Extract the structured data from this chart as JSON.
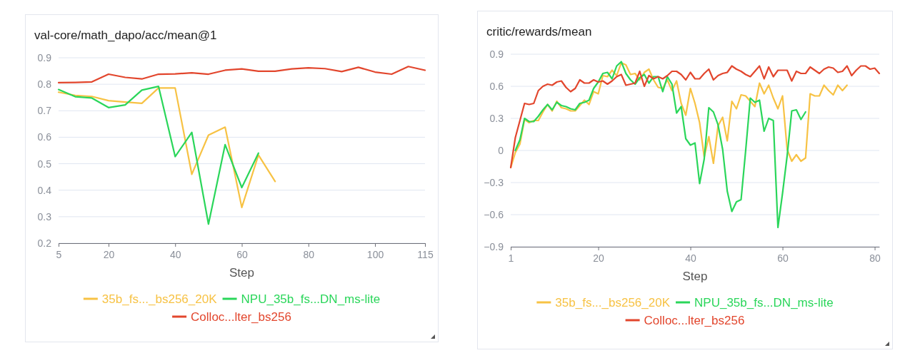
{
  "chart_data": [
    {
      "type": "line",
      "title": "val-core/math_dapo/acc/mean@1",
      "xlabel": "Step",
      "xlim": [
        5,
        115
      ],
      "xticks": [
        5,
        20,
        40,
        60,
        80,
        100,
        115
      ],
      "ylim": [
        0.2,
        0.9
      ],
      "yticks": [
        0.2,
        0.3,
        0.4,
        0.5,
        0.6,
        0.7,
        0.8,
        0.9
      ],
      "grid": "y",
      "legend": "bottom",
      "marker": "none",
      "line_style": "solid",
      "series": [
        {
          "name": "35b_fs..._bs256_20K",
          "color": "#f7c244",
          "x": [
            5,
            10,
            15,
            20,
            25,
            30,
            35,
            40,
            45,
            50,
            55,
            60,
            65,
            70
          ],
          "values": [
            0.77,
            0.758,
            0.754,
            0.738,
            0.733,
            0.728,
            0.786,
            0.786,
            0.46,
            0.608,
            0.638,
            0.335,
            0.533,
            0.433
          ]
        },
        {
          "name": "NPU_35b_fs...DN_ms-lite",
          "color": "#2ad65a",
          "x": [
            5,
            10,
            15,
            20,
            25,
            30,
            35,
            40,
            45,
            50,
            55,
            60,
            65
          ],
          "values": [
            0.78,
            0.753,
            0.748,
            0.712,
            0.722,
            0.778,
            0.792,
            0.527,
            0.618,
            0.272,
            0.572,
            0.41,
            0.54
          ]
        },
        {
          "name": "Colloc...lter_bs256",
          "color": "#e2462d",
          "x": [
            5,
            10,
            15,
            20,
            25,
            30,
            35,
            40,
            45,
            50,
            55,
            60,
            65,
            70,
            75,
            80,
            85,
            90,
            95,
            100,
            105,
            110,
            115
          ],
          "values": [
            0.806,
            0.807,
            0.809,
            0.838,
            0.826,
            0.82,
            0.838,
            0.839,
            0.843,
            0.838,
            0.853,
            0.858,
            0.849,
            0.849,
            0.858,
            0.862,
            0.859,
            0.848,
            0.864,
            0.846,
            0.838,
            0.867,
            0.853
          ]
        }
      ]
    },
    {
      "type": "line",
      "title": "critic/rewards/mean",
      "xlabel": "Step",
      "xlim": [
        1,
        81
      ],
      "xticks": [
        1,
        20,
        40,
        60,
        80
      ],
      "ylim": [
        -0.9,
        0.9
      ],
      "yticks": [
        -0.9,
        -0.6,
        -0.3,
        0,
        0.3,
        0.6,
        0.9
      ],
      "grid": "y",
      "legend": "bottom",
      "marker": "none",
      "line_style": "solid",
      "series": [
        {
          "name": "35b_fs..._bs256_20K",
          "color": "#f7c244",
          "x": [
            1,
            2,
            3,
            4,
            5,
            6,
            7,
            8,
            9,
            10,
            11,
            12,
            13,
            14,
            15,
            16,
            17,
            18,
            19,
            20,
            21,
            22,
            23,
            24,
            25,
            26,
            27,
            28,
            29,
            30,
            31,
            32,
            33,
            34,
            35,
            36,
            37,
            38,
            39,
            40,
            41,
            42,
            43,
            44,
            45,
            46,
            47,
            48,
            49,
            50,
            51,
            52,
            53,
            54,
            55,
            56,
            57,
            58,
            59,
            60,
            61,
            62,
            63,
            64,
            65,
            66,
            67,
            68,
            69,
            70,
            71,
            72,
            73,
            74
          ],
          "values": [
            -0.16,
            -0.02,
            0.06,
            0.29,
            0.26,
            0.28,
            0.28,
            0.36,
            0.43,
            0.37,
            0.46,
            0.4,
            0.39,
            0.37,
            0.37,
            0.42,
            0.47,
            0.43,
            0.55,
            0.53,
            0.7,
            0.69,
            0.75,
            0.7,
            0.82,
            0.8,
            0.71,
            0.72,
            0.66,
            0.73,
            0.76,
            0.66,
            0.59,
            0.58,
            0.66,
            0.56,
            0.65,
            0.44,
            0.33,
            0.58,
            0.44,
            0.26,
            -0.06,
            0.13,
            -0.12,
            0.23,
            0.31,
            0.09,
            0.46,
            0.39,
            0.52,
            0.51,
            0.46,
            0.41,
            0.63,
            0.53,
            0.61,
            0.49,
            0.39,
            0.51,
            0.01,
            -0.1,
            -0.04,
            -0.1,
            -0.07,
            0.53,
            0.51,
            0.51,
            0.61,
            0.56,
            0.52,
            0.61,
            0.56,
            0.61
          ]
        },
        {
          "name": "NPU_35b_fs...DN_ms-lite",
          "color": "#2ad65a",
          "x": [
            2,
            3,
            4,
            5,
            6,
            7,
            8,
            9,
            10,
            11,
            12,
            13,
            14,
            15,
            16,
            17,
            18,
            19,
            20,
            21,
            22,
            23,
            24,
            25,
            26,
            27,
            28,
            29,
            30,
            31,
            32,
            33,
            34,
            35,
            36,
            37,
            38,
            39,
            40,
            41,
            42,
            43,
            44,
            45,
            46,
            47,
            48,
            49,
            50,
            51,
            52,
            53,
            54,
            55,
            56,
            57,
            58,
            59,
            60,
            61,
            62,
            63,
            64,
            65
          ],
          "values": [
            0.0,
            0.1,
            0.3,
            0.27,
            0.27,
            0.32,
            0.38,
            0.43,
            0.38,
            0.45,
            0.42,
            0.41,
            0.39,
            0.38,
            0.44,
            0.45,
            0.47,
            0.58,
            0.64,
            0.72,
            0.73,
            0.67,
            0.79,
            0.83,
            0.72,
            0.66,
            0.62,
            0.68,
            0.71,
            0.63,
            0.69,
            0.69,
            0.55,
            0.69,
            0.62,
            0.35,
            0.41,
            0.11,
            0.05,
            0.07,
            -0.31,
            -0.08,
            0.4,
            0.36,
            0.24,
            0.01,
            -0.38,
            -0.57,
            -0.48,
            -0.46,
            0.0,
            0.49,
            0.45,
            0.47,
            0.18,
            0.3,
            0.28,
            -0.72,
            -0.4,
            -0.05,
            0.37,
            0.38,
            0.29,
            0.36
          ]
        },
        {
          "name": "Colloc...lter_bs256",
          "color": "#e2462d",
          "x": [
            1,
            2,
            3,
            4,
            5,
            6,
            7,
            8,
            9,
            10,
            11,
            12,
            13,
            14,
            15,
            16,
            17,
            18,
            19,
            20,
            21,
            22,
            23,
            24,
            25,
            26,
            27,
            28,
            29,
            30,
            31,
            32,
            33,
            34,
            35,
            36,
            37,
            38,
            39,
            40,
            41,
            42,
            43,
            44,
            45,
            46,
            47,
            48,
            49,
            50,
            51,
            52,
            53,
            54,
            55,
            56,
            57,
            58,
            59,
            60,
            61,
            62,
            63,
            64,
            65,
            66,
            67,
            68,
            69,
            70,
            71,
            72,
            73,
            74,
            75,
            76,
            77,
            78,
            79,
            80,
            81
          ],
          "values": [
            -0.16,
            0.12,
            0.28,
            0.44,
            0.43,
            0.44,
            0.56,
            0.6,
            0.62,
            0.61,
            0.64,
            0.65,
            0.59,
            0.55,
            0.58,
            0.66,
            0.63,
            0.63,
            0.66,
            0.64,
            0.65,
            0.62,
            0.65,
            0.69,
            0.71,
            0.61,
            0.62,
            0.63,
            0.74,
            0.6,
            0.7,
            0.67,
            0.69,
            0.67,
            0.7,
            0.74,
            0.74,
            0.71,
            0.66,
            0.73,
            0.67,
            0.67,
            0.72,
            0.76,
            0.66,
            0.7,
            0.72,
            0.73,
            0.79,
            0.76,
            0.74,
            0.71,
            0.69,
            0.74,
            0.79,
            0.67,
            0.78,
            0.69,
            0.75,
            0.75,
            0.75,
            0.65,
            0.74,
            0.72,
            0.72,
            0.78,
            0.75,
            0.72,
            0.76,
            0.78,
            0.77,
            0.73,
            0.74,
            0.79,
            0.7,
            0.75,
            0.79,
            0.79,
            0.76,
            0.77,
            0.72
          ]
        }
      ]
    }
  ]
}
